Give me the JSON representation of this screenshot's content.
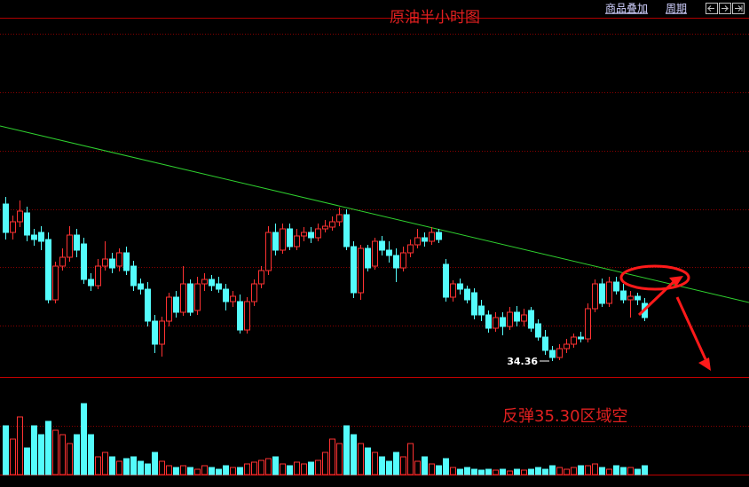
{
  "chart_data": {
    "type": "candlestick",
    "title": "原油半小时图",
    "toolbar": [
      "商品叠加",
      "周期"
    ],
    "open": [
      36.13,
      35.81,
      35.93,
      36.03,
      35.78,
      35.81,
      35.73,
      35.05,
      35.43,
      35.53,
      35.78,
      35.68,
      35.28,
      35.21,
      35.43,
      35.51,
      35.43,
      35.58,
      35.43,
      35.23,
      35.17,
      34.81,
      34.55,
      34.81,
      35.08,
      34.91,
      35.23,
      34.93,
      35.23,
      35.28,
      35.23,
      35.17,
      35.03,
      35.03,
      34.71,
      35.03,
      35.23,
      35.38,
      35.81,
      35.61,
      35.85,
      35.65,
      35.77,
      35.81,
      35.75,
      35.85,
      35.87,
      35.93,
      36.01,
      35.65,
      35.13,
      35.63,
      35.43,
      35.71,
      35.61,
      35.55,
      35.41,
      35.58,
      35.67,
      35.75,
      35.71,
      35.81,
      35.45,
      35.08,
      35.23,
      35.17,
      35.13,
      34.98,
      34.88,
      34.73,
      34.85,
      34.75,
      34.91,
      34.81,
      34.93,
      34.78,
      34.63,
      34.48,
      34.4,
      34.5,
      34.55,
      34.63,
      34.61,
      34.95,
      35.23,
      35.01,
      35.25,
      35.15,
      35.05,
      35.09,
      35.01
    ],
    "high": [
      36.21,
      36.0,
      36.17,
      36.1,
      35.85,
      35.88,
      35.81,
      35.48,
      35.63,
      35.88,
      35.85,
      35.75,
      35.35,
      35.51,
      35.71,
      35.58,
      35.63,
      35.65,
      35.49,
      35.29,
      35.25,
      34.88,
      34.86,
      35.13,
      35.15,
      35.43,
      35.28,
      35.31,
      35.35,
      35.33,
      35.31,
      35.23,
      35.15,
      35.11,
      35.08,
      35.28,
      35.43,
      35.88,
      35.91,
      35.91,
      35.91,
      35.85,
      35.87,
      35.87,
      35.91,
      35.95,
      35.99,
      36.09,
      36.07,
      35.71,
      35.67,
      35.67,
      35.75,
      35.77,
      35.71,
      35.63,
      35.65,
      35.73,
      35.85,
      35.81,
      35.87,
      35.85,
      35.51,
      35.27,
      35.29,
      35.21,
      35.18,
      35.05,
      34.93,
      34.91,
      34.91,
      34.97,
      34.98,
      34.95,
      34.97,
      34.83,
      34.71,
      34.53,
      34.55,
      34.61,
      34.67,
      34.69,
      35.01,
      35.28,
      35.29,
      35.31,
      35.31,
      35.23,
      35.15,
      35.13,
      35.07
    ],
    "low": [
      35.73,
      35.73,
      35.87,
      35.71,
      35.66,
      35.61,
      35.01,
      35.01,
      35.38,
      35.48,
      35.53,
      35.23,
      35.15,
      35.17,
      35.38,
      35.35,
      35.37,
      35.33,
      35.15,
      35.11,
      34.75,
      34.45,
      34.41,
      34.75,
      34.85,
      34.87,
      34.87,
      34.88,
      35.15,
      35.15,
      35.13,
      34.93,
      34.97,
      34.67,
      34.67,
      34.98,
      35.18,
      35.33,
      35.55,
      35.57,
      35.61,
      35.61,
      35.71,
      35.69,
      35.71,
      35.81,
      35.83,
      35.88,
      35.61,
      35.07,
      35.05,
      35.37,
      35.39,
      35.55,
      35.47,
      35.25,
      35.37,
      35.53,
      35.63,
      35.65,
      35.67,
      35.69,
      35.03,
      35.03,
      35.11,
      35.01,
      34.83,
      34.81,
      34.68,
      34.69,
      34.65,
      34.71,
      34.75,
      34.75,
      34.69,
      34.59,
      34.43,
      34.36,
      34.37,
      34.45,
      34.51,
      34.57,
      34.57,
      34.91,
      34.97,
      34.97,
      35.11,
      35.01,
      34.85,
      34.99,
      34.81
    ],
    "close": [
      35.81,
      35.93,
      36.05,
      35.78,
      35.73,
      35.71,
      35.05,
      35.43,
      35.53,
      35.78,
      35.61,
      35.28,
      35.21,
      35.43,
      35.51,
      35.41,
      35.58,
      35.38,
      35.21,
      35.17,
      34.81,
      34.55,
      34.81,
      35.08,
      34.91,
      35.23,
      34.91,
      35.23,
      35.28,
      35.21,
      35.17,
      35.03,
      35.09,
      34.71,
      35.03,
      35.23,
      35.38,
      35.81,
      35.61,
      35.85,
      35.65,
      35.77,
      35.81,
      35.75,
      35.85,
      35.88,
      35.93,
      36.01,
      35.65,
      35.13,
      35.63,
      35.41,
      35.71,
      35.61,
      35.55,
      35.41,
      35.58,
      35.67,
      35.75,
      35.71,
      35.81,
      35.73,
      35.08,
      35.23,
      35.17,
      35.05,
      34.88,
      34.88,
      34.73,
      34.85,
      34.75,
      34.91,
      34.81,
      34.88,
      34.73,
      34.63,
      34.48,
      34.4,
      34.5,
      34.55,
      34.63,
      34.61,
      34.95,
      35.23,
      35.01,
      35.25,
      35.15,
      35.05,
      35.09,
      35.05,
      34.85
    ],
    "ylim": [
      34.18,
      38.23
    ],
    "volume": [
      55,
      40,
      65,
      30,
      55,
      45,
      60,
      50,
      45,
      35,
      45,
      80,
      45,
      20,
      25,
      20,
      15,
      18,
      20,
      15,
      12,
      25,
      15,
      10,
      8,
      10,
      8,
      6,
      10,
      8,
      6,
      10,
      8,
      8,
      12,
      14,
      16,
      18,
      20,
      12,
      10,
      14,
      12,
      14,
      16,
      25,
      40,
      35,
      55,
      45,
      35,
      30,
      25,
      20,
      15,
      25,
      20,
      35,
      15,
      20,
      12,
      10,
      18,
      8,
      6,
      8,
      6,
      5,
      6,
      5,
      6,
      4,
      6,
      5,
      6,
      8,
      6,
      10,
      8,
      6,
      8,
      10,
      10,
      12,
      8,
      6,
      10,
      8,
      8,
      6,
      10
    ],
    "volume_lim": [
      0,
      110
    ],
    "up_color": "#ff3232",
    "down_color": "#54fcfc",
    "annotations": [
      {
        "text": "34.36",
        "value": 34.36
      },
      {
        "text": "反弹35.30区域空",
        "value": 35.3
      }
    ]
  }
}
